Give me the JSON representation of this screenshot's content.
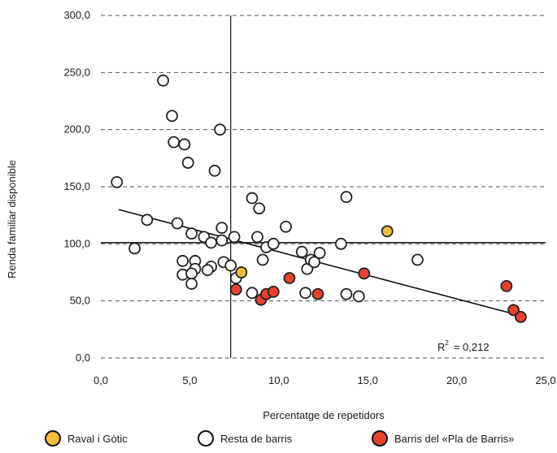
{
  "chart_data": {
    "type": "scatter",
    "xlabel": "Percentatge de repetidors",
    "ylabel": "Renda familiar disponible",
    "xlim": [
      0,
      25
    ],
    "ylim": [
      0,
      300
    ],
    "x_ticks": [
      "0,0",
      "5,0",
      "10,0",
      "15,0",
      "20,0",
      "25,0"
    ],
    "y_ticks": [
      "0,0",
      "50,0",
      "100,0",
      "150,0",
      "200,0",
      "250,0",
      "300,0"
    ],
    "grid": "horizontal dashed",
    "reference_lines": {
      "x": 7.3,
      "y": 101
    },
    "trendline": {
      "x": [
        1,
        23.6
      ],
      "y": [
        130,
        37
      ]
    },
    "annotation": {
      "label": "R",
      "superscript": "2",
      "value": "= 0,212"
    },
    "series": [
      {
        "name": "Raval i Gòtic",
        "color": "#f5be36",
        "points": [
          [
            7.9,
            75
          ],
          [
            16.1,
            111
          ]
        ]
      },
      {
        "name": "Resta de barris",
        "color": "#ffffff",
        "points": [
          [
            3.5,
            243
          ],
          [
            4.0,
            212
          ],
          [
            4.1,
            189
          ],
          [
            4.7,
            187
          ],
          [
            6.7,
            200
          ],
          [
            4.9,
            171
          ],
          [
            6.4,
            164
          ],
          [
            0.9,
            154
          ],
          [
            2.6,
            121
          ],
          [
            1.9,
            96
          ],
          [
            4.3,
            118
          ],
          [
            5.1,
            109
          ],
          [
            5.8,
            106
          ],
          [
            6.2,
            101
          ],
          [
            6.8,
            103
          ],
          [
            6.8,
            114
          ],
          [
            7.5,
            106
          ],
          [
            8.5,
            140
          ],
          [
            8.9,
            131
          ],
          [
            8.8,
            106
          ],
          [
            9.3,
            97
          ],
          [
            9.7,
            100
          ],
          [
            10.4,
            115
          ],
          [
            4.6,
            85
          ],
          [
            5.3,
            85
          ],
          [
            5.3,
            78
          ],
          [
            6.2,
            80
          ],
          [
            6.9,
            84
          ],
          [
            7.3,
            81
          ],
          [
            4.6,
            73
          ],
          [
            5.1,
            74
          ],
          [
            5.1,
            65
          ],
          [
            6.0,
            77
          ],
          [
            7.6,
            70
          ],
          [
            8.5,
            57
          ],
          [
            9.1,
            86
          ],
          [
            11.3,
            93
          ],
          [
            11.6,
            78
          ],
          [
            11.8,
            86
          ],
          [
            12.0,
            84
          ],
          [
            12.3,
            92
          ],
          [
            13.5,
            100
          ],
          [
            13.8,
            141
          ],
          [
            17.8,
            86
          ],
          [
            11.5,
            57
          ],
          [
            13.8,
            56
          ],
          [
            14.5,
            54
          ]
        ]
      },
      {
        "name": "Barris del «Pla de Barris»",
        "color": "#e8412c",
        "points": [
          [
            7.6,
            60
          ],
          [
            9.0,
            51
          ],
          [
            9.3,
            56
          ],
          [
            9.7,
            58
          ],
          [
            10.6,
            70
          ],
          [
            12.2,
            56
          ],
          [
            14.8,
            74
          ],
          [
            22.8,
            63
          ],
          [
            23.2,
            42
          ],
          [
            23.6,
            36
          ]
        ]
      }
    ]
  }
}
